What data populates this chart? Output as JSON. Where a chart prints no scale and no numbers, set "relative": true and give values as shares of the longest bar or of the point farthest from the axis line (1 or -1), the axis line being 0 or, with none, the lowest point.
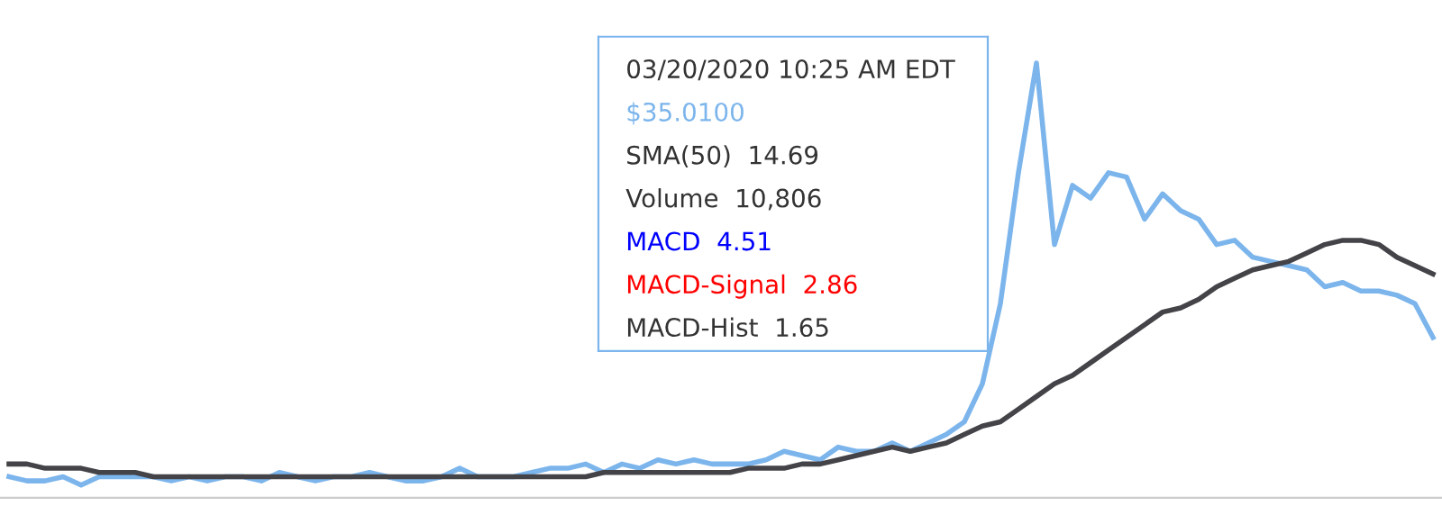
{
  "chart_data": {
    "type": "line",
    "relative": true,
    "categories": [
      null,
      null,
      null,
      null,
      null,
      null,
      null,
      null,
      null,
      null,
      null,
      null,
      null,
      null,
      null,
      null,
      null,
      null,
      null,
      null,
      null,
      null,
      null,
      null,
      null,
      null,
      null,
      null,
      null,
      null,
      null,
      null,
      null,
      null,
      null,
      null,
      null,
      null,
      null,
      null,
      null,
      null,
      null,
      null,
      null,
      null,
      null,
      null,
      null,
      null,
      null,
      null,
      null,
      null,
      null,
      null,
      null,
      null,
      null,
      null,
      null,
      null,
      null,
      null,
      null,
      null,
      null,
      null,
      null,
      null,
      null,
      null,
      null,
      null,
      null,
      null,
      null,
      null,
      null,
      null
    ],
    "series": [
      {
        "color": "#7cb5ec",
        "values": [
          0.02,
          0.01,
          0.01,
          0.02,
          0.0,
          0.02,
          0.02,
          0.02,
          0.02,
          0.01,
          0.02,
          0.01,
          0.02,
          0.02,
          0.01,
          0.03,
          0.02,
          0.01,
          0.02,
          0.02,
          0.03,
          0.02,
          0.01,
          0.01,
          0.02,
          0.04,
          0.02,
          0.02,
          0.02,
          0.03,
          0.04,
          0.04,
          0.05,
          0.03,
          0.05,
          0.04,
          0.06,
          0.05,
          0.06,
          0.05,
          0.05,
          0.05,
          0.06,
          0.08,
          0.07,
          0.06,
          0.09,
          0.08,
          0.08,
          0.1,
          0.08,
          0.1,
          0.12,
          0.15,
          0.24,
          0.43,
          0.74,
          1.0,
          0.57,
          0.71,
          0.68,
          0.74,
          0.73,
          0.63,
          0.69,
          0.65,
          0.63,
          0.57,
          0.58,
          0.54,
          0.53,
          0.52,
          0.51,
          0.47,
          0.48,
          0.46,
          0.46,
          0.45,
          0.43,
          0.35
        ]
      },
      {
        "color": "#434348",
        "values": [
          0.05,
          0.05,
          0.04,
          0.04,
          0.04,
          0.03,
          0.03,
          0.03,
          0.02,
          0.02,
          0.02,
          0.02,
          0.02,
          0.02,
          0.02,
          0.02,
          0.02,
          0.02,
          0.02,
          0.02,
          0.02,
          0.02,
          0.02,
          0.02,
          0.02,
          0.02,
          0.02,
          0.02,
          0.02,
          0.02,
          0.02,
          0.02,
          0.02,
          0.03,
          0.03,
          0.03,
          0.03,
          0.03,
          0.03,
          0.03,
          0.03,
          0.04,
          0.04,
          0.04,
          0.05,
          0.05,
          0.06,
          0.07,
          0.08,
          0.09,
          0.08,
          0.09,
          0.1,
          0.12,
          0.14,
          0.15,
          0.18,
          0.21,
          0.24,
          0.26,
          0.29,
          0.32,
          0.35,
          0.38,
          0.41,
          0.42,
          0.44,
          0.47,
          0.49,
          0.51,
          0.52,
          0.53,
          0.55,
          0.57,
          0.58,
          0.58,
          0.57,
          0.54,
          0.52,
          0.5
        ]
      }
    ],
    "annotations": [
      "03/20/2020 10:25 AM EDT",
      "$35.0100",
      "SMA(50)  14.69",
      "Volume  10,806",
      "MACD  4.51",
      "MACD-Signal  2.86",
      "MACD-Hist  1.65"
    ]
  }
}
